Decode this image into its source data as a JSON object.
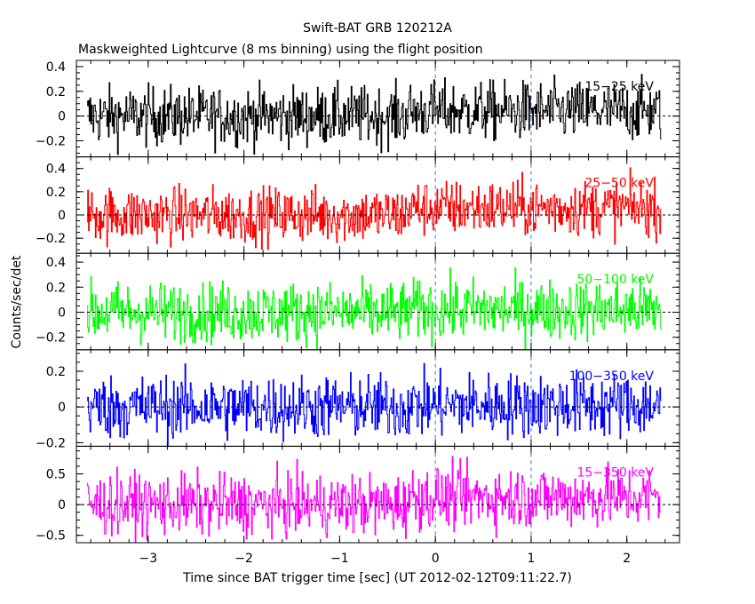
{
  "chart_data": {
    "type": "line",
    "title": "Swift-BAT GRB 120212A",
    "subtitle": "Maskweighted Lightcurve (8 ms binning) using the flight position",
    "xlabel": "Time since BAT trigger time [sec] (UT 2012-02-12T09:11:22.7)",
    "ylabel": "Counts/sec/det",
    "xlim": [
      -3.75,
      2.55
    ],
    "x_ticks": [
      -3,
      -2,
      -1,
      0,
      1,
      2
    ],
    "x_tick_labels": [
      "−3",
      "−2",
      "−1",
      "0",
      "1",
      "2"
    ],
    "data_range": [
      -3.64,
      2.36
    ],
    "bin_width_sec": 0.008,
    "vertical_markers": [
      0,
      1
    ],
    "panels": [
      {
        "band": "15-25 keV",
        "label": "15−25 keV",
        "color": "#000000",
        "ylim": [
          -0.33,
          0.45
        ],
        "yticks": [
          -0.2,
          0,
          0.2,
          0.4
        ],
        "ytick_labels": [
          "−0.2",
          "0",
          "0.2",
          "0.4"
        ],
        "mean": 0.0,
        "amplitude": 0.12,
        "late_mean": 0.04
      },
      {
        "band": "25-50 keV",
        "label": "25−50 keV",
        "color": "#ff0000",
        "ylim": [
          -0.33,
          0.5
        ],
        "yticks": [
          -0.2,
          0,
          0.2,
          0.4
        ],
        "ytick_labels": [
          "−0.2",
          "0",
          "0.2",
          "0.4"
        ],
        "mean": 0.0,
        "amplitude": 0.12,
        "late_mean": 0.06
      },
      {
        "band": "50-100 keV",
        "label": "50−100 keV",
        "color": "#00ff00",
        "ylim": [
          -0.3,
          0.47
        ],
        "yticks": [
          -0.2,
          0,
          0.2,
          0.4
        ],
        "ytick_labels": [
          "−0.2",
          "0",
          "0.2",
          "0.4"
        ],
        "mean": 0.0,
        "amplitude": 0.12,
        "late_mean": 0.02
      },
      {
        "band": "100-350 keV",
        "label": "100−350 keV",
        "color": "#0000ff",
        "ylim": [
          -0.22,
          0.32
        ],
        "yticks": [
          -0.2,
          0,
          0.2
        ],
        "ytick_labels": [
          "−0.2",
          "0",
          "0.2"
        ],
        "mean": 0.0,
        "amplitude": 0.09,
        "late_mean": 0.01
      },
      {
        "band": "15-350 keV",
        "label": "15−350 keV",
        "color": "#ff00ff",
        "ylim": [
          -0.62,
          0.95
        ],
        "yticks": [
          -0.5,
          0,
          0.5
        ],
        "ytick_labels": [
          "−0.5",
          "0",
          "0.5"
        ],
        "mean": 0.0,
        "amplitude": 0.25,
        "late_mean": 0.12
      }
    ]
  }
}
